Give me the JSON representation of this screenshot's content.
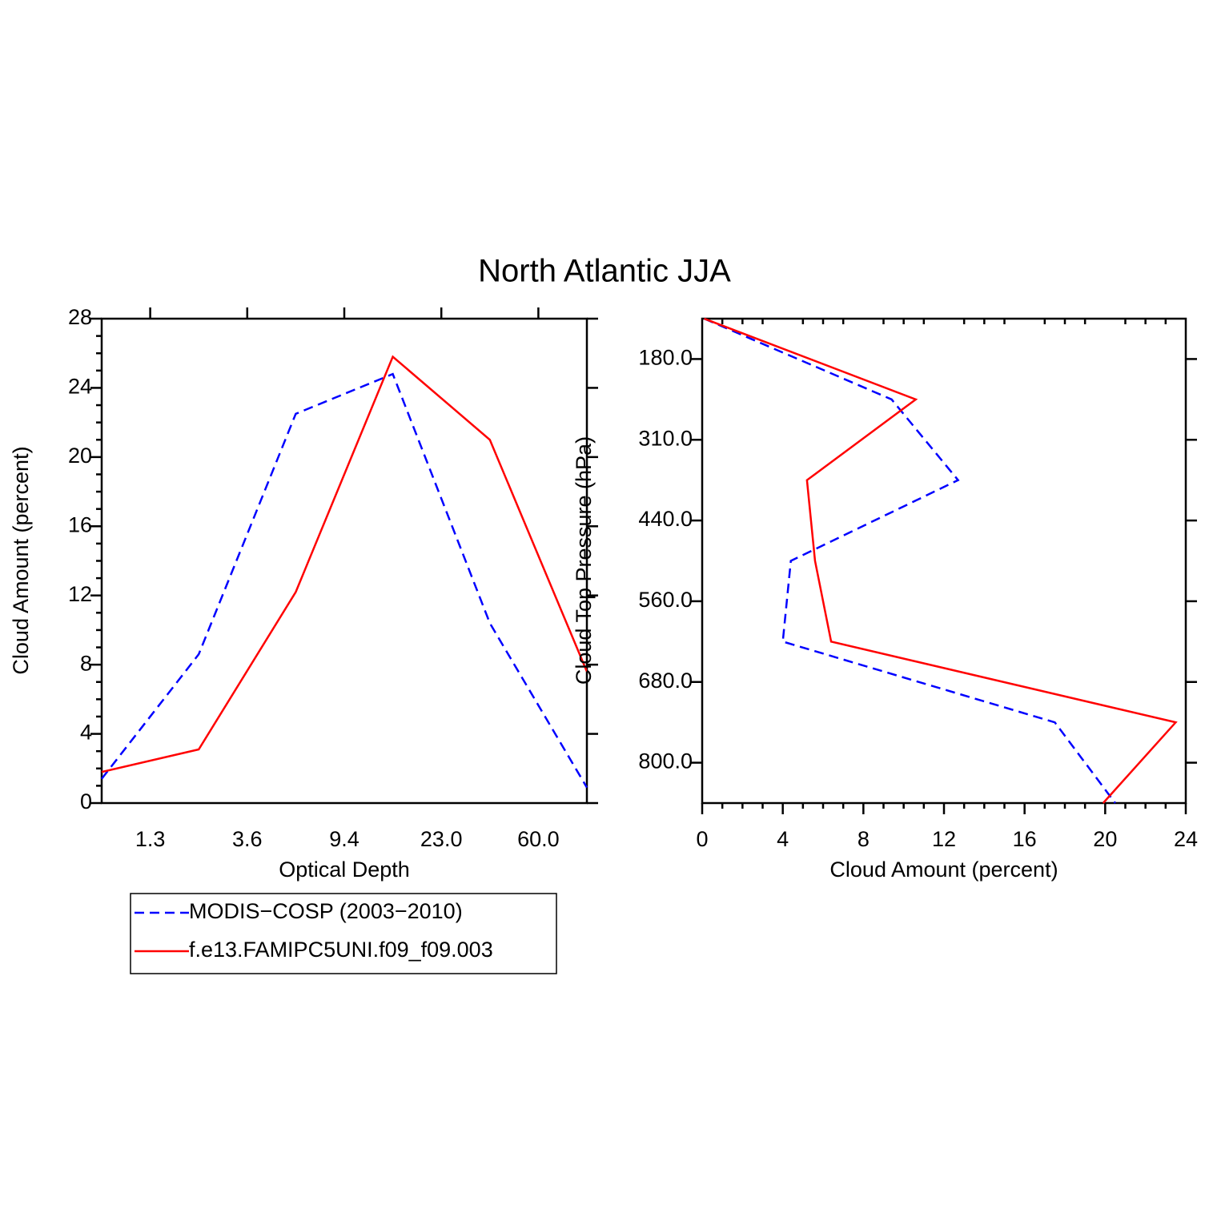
{
  "title": "North Atlantic JJA",
  "chart_data": [
    {
      "type": "line",
      "xlabel": "Optical Depth",
      "ylabel": "Cloud Amount (percent)",
      "x": [
        0,
        1,
        2,
        3,
        4,
        5
      ],
      "xlim": [
        0,
        5
      ],
      "xticks": [
        {
          "value": 0.5,
          "label": "1.3"
        },
        {
          "value": 1.5,
          "label": "3.6"
        },
        {
          "value": 2.5,
          "label": "9.4"
        },
        {
          "value": 3.5,
          "label": "23.0"
        },
        {
          "value": 4.5,
          "label": "60.0"
        }
      ],
      "ylim": [
        0,
        28
      ],
      "yticks": [
        0,
        4,
        8,
        12,
        16,
        20,
        24,
        28
      ],
      "series": [
        {
          "name": "MODIS−COSP (2003−2010)",
          "color": "#0000ff",
          "line_style": "dashed",
          "values": [
            1.4,
            8.6,
            22.5,
            24.8,
            10.4,
            0.9
          ]
        },
        {
          "name": "f.e13.FAMIPC5UNI.f09_f09.003",
          "color": "#ff0000",
          "line_style": "solid",
          "values": [
            1.8,
            3.1,
            12.2,
            25.8,
            21.0,
            7.6
          ]
        }
      ]
    },
    {
      "type": "line",
      "orientation": "horizontal",
      "xlabel": "Cloud Amount (percent)",
      "ylabel": "Cloud Top Pressure (hPa)",
      "y": [
        0,
        1,
        2,
        3,
        4,
        5,
        6
      ],
      "ylim": [
        6,
        0
      ],
      "yticks": [
        {
          "value": 0.5,
          "label": "180.0"
        },
        {
          "value": 1.5,
          "label": "310.0"
        },
        {
          "value": 2.5,
          "label": "440.0"
        },
        {
          "value": 3.5,
          "label": "560.0"
        },
        {
          "value": 4.5,
          "label": "680.0"
        },
        {
          "value": 5.5,
          "label": "800.0"
        }
      ],
      "xlim": [
        0,
        24
      ],
      "xticks": [
        0,
        4,
        8,
        12,
        16,
        20,
        24
      ],
      "series": [
        {
          "color": "#0000ff",
          "line_style": "dashed",
          "values": [
            0.1,
            9.4,
            12.7,
            4.4,
            4.0,
            17.5,
            20.5
          ]
        },
        {
          "color": "#ff0000",
          "line_style": "solid",
          "values": [
            0.1,
            10.6,
            5.2,
            5.6,
            6.4,
            23.5,
            19.9
          ]
        }
      ]
    }
  ]
}
